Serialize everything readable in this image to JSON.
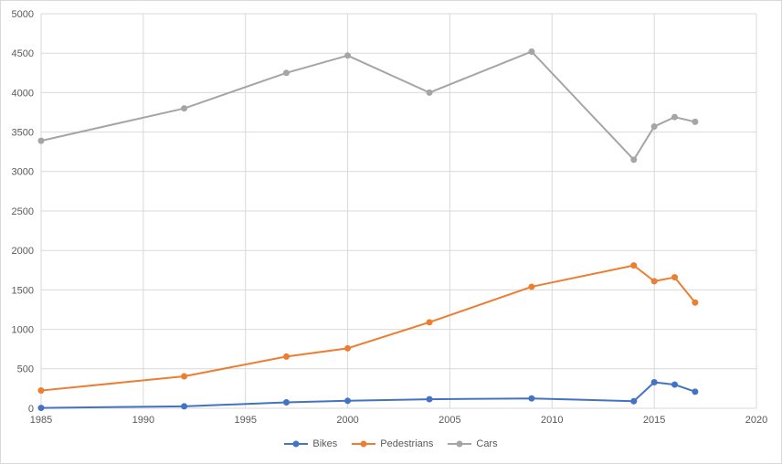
{
  "chart_data": {
    "type": "line",
    "x": [
      1985,
      1992,
      1997,
      2000,
      2004,
      2009,
      2014,
      2015,
      2016,
      2017
    ],
    "series": [
      {
        "name": "Bikes",
        "color": "#4472C4",
        "values": [
          5,
          25,
          75,
          95,
          115,
          125,
          90,
          330,
          300,
          210
        ]
      },
      {
        "name": "Pedestrians",
        "color": "#ED7D31",
        "values": [
          225,
          405,
          655,
          760,
          1090,
          1540,
          1810,
          1610,
          1660,
          1340
        ]
      },
      {
        "name": "Cars",
        "color": "#A5A5A5",
        "values": [
          3390,
          3800,
          4250,
          4470,
          4000,
          4520,
          3150,
          3570,
          3690,
          3630
        ]
      }
    ],
    "title": "",
    "xlabel": "",
    "ylabel": "",
    "xlim": [
      1985,
      2020
    ],
    "ylim": [
      0,
      5000
    ],
    "x_ticks": [
      1985,
      1990,
      1995,
      2000,
      2005,
      2010,
      2015,
      2020
    ],
    "y_ticks": [
      0,
      500,
      1000,
      1500,
      2000,
      2500,
      3000,
      3500,
      4000,
      4500,
      5000
    ],
    "grid": true,
    "legend_position": "bottom"
  },
  "colors": {
    "grid": "#D9D9D9",
    "axis_text": "#595959",
    "background": "#FFFFFF",
    "border": "#D9D9D9"
  }
}
